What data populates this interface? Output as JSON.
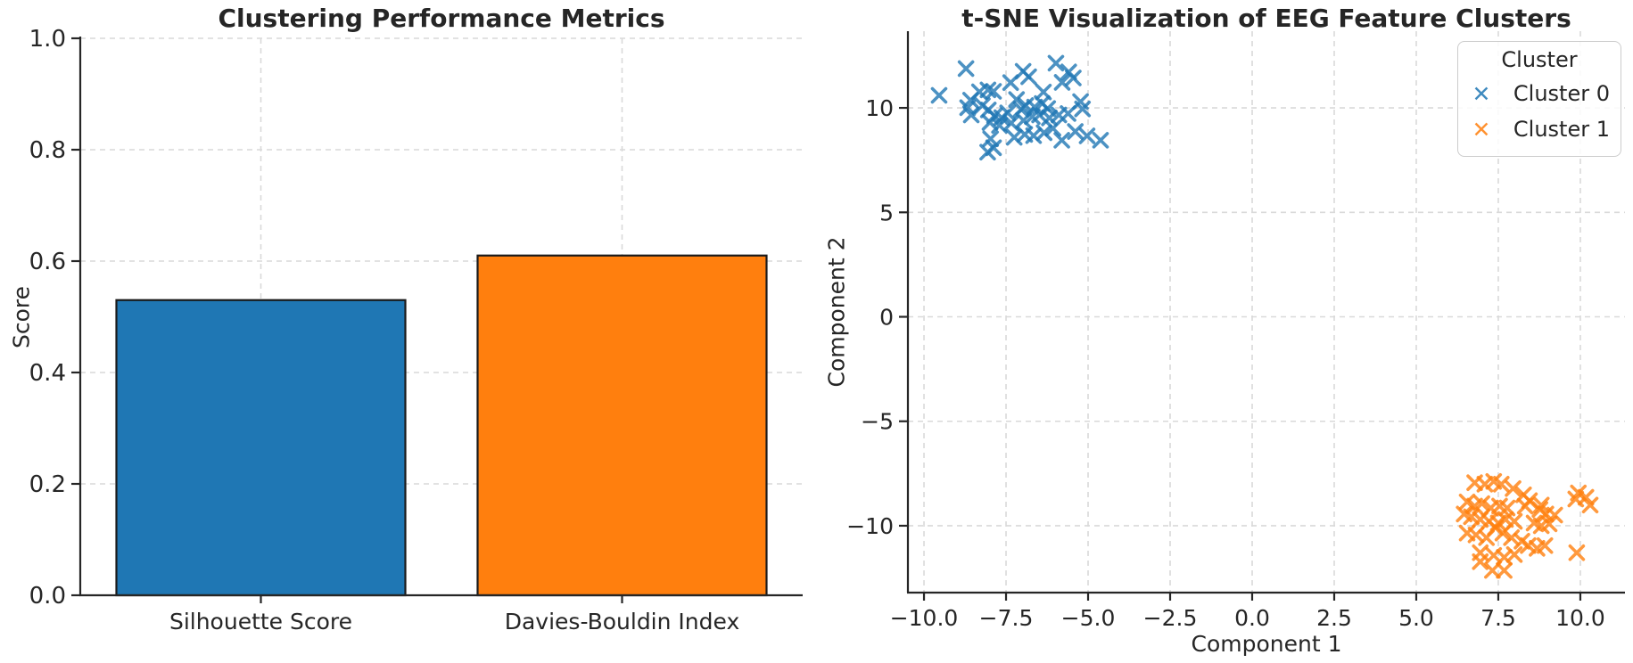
{
  "chart_data": [
    {
      "type": "bar",
      "title": "Clustering Performance Metrics",
      "xlabel": "",
      "ylabel": "Score",
      "categories": [
        "Silhouette Score",
        "Davies-Bouldin Index"
      ],
      "values": [
        0.53,
        0.61
      ],
      "bar_colors": [
        "#1f77b4",
        "#ff7f0e"
      ],
      "bar_edge_color": "#1a1a1a",
      "ylim": [
        0.0,
        1.0
      ],
      "yticks": [
        0.0,
        0.2,
        0.4,
        0.6,
        0.8,
        1.0
      ],
      "ytick_labels": [
        "0.0",
        "0.2",
        "0.4",
        "0.6",
        "0.8",
        "1.0"
      ],
      "grid": "both-dashed",
      "legend_position": "none"
    },
    {
      "type": "scatter",
      "title": "t-SNE Visualization of EEG Feature Clusters",
      "xlabel": "Component 1",
      "ylabel": "Component 2",
      "xlim": [
        -10.49,
        11.36
      ],
      "ylim": [
        -13.2,
        13.67
      ],
      "xticks": [
        -10.0,
        -7.5,
        -5.0,
        -2.5,
        0.0,
        2.5,
        5.0,
        7.5,
        10.0
      ],
      "xtick_labels": [
        "−10.0",
        "−7.5",
        "−5.0",
        "−2.5",
        "0.0",
        "2.5",
        "5.0",
        "7.5",
        "10.0"
      ],
      "yticks": [
        -10,
        -5,
        0,
        5,
        10
      ],
      "ytick_labels": [
        "−10",
        "−5",
        "0",
        "5",
        "10"
      ],
      "grid": "both-dashed",
      "marker": "x",
      "marker_opacity": 0.8,
      "legend": {
        "title": "Cluster",
        "position": "upper-right",
        "entries": [
          {
            "label": "Cluster 0",
            "color": "#1f77b4",
            "marker": "x"
          },
          {
            "label": "Cluster 1",
            "color": "#ff7f0e",
            "marker": "x"
          }
        ]
      },
      "series": [
        {
          "name": "Cluster 0",
          "color": "#1f77b4",
          "points": [
            [
              -9.54,
              10.6
            ],
            [
              -8.72,
              11.88
            ],
            [
              -8.31,
              10.77
            ],
            [
              -8.05,
              10.86
            ],
            [
              -7.88,
              10.79
            ],
            [
              -7.36,
              11.21
            ],
            [
              -6.98,
              11.75
            ],
            [
              -6.81,
              11.49
            ],
            [
              -5.98,
              12.14
            ],
            [
              -5.59,
              11.72
            ],
            [
              -5.45,
              11.43
            ],
            [
              -5.79,
              11.22
            ],
            [
              -6.36,
              10.76
            ],
            [
              -7.18,
              10.4
            ],
            [
              -6.4,
              10.21
            ],
            [
              -6.23,
              9.97
            ],
            [
              -6.63,
              10.04
            ],
            [
              -6.9,
              10.11
            ],
            [
              -7.04,
              9.93
            ],
            [
              -7.45,
              9.76
            ],
            [
              -7.63,
              9.53
            ],
            [
              -7.85,
              9.62
            ],
            [
              -8.04,
              9.9
            ],
            [
              -8.22,
              10.11
            ],
            [
              -8.58,
              10.37
            ],
            [
              -8.67,
              10.01
            ],
            [
              -8.56,
              9.66
            ],
            [
              -7.99,
              9.3
            ],
            [
              -7.7,
              9.16
            ],
            [
              -7.34,
              9.27
            ],
            [
              -6.97,
              9.4
            ],
            [
              -6.7,
              9.58
            ],
            [
              -6.48,
              9.66
            ],
            [
              -6.18,
              9.52
            ],
            [
              -5.89,
              9.66
            ],
            [
              -5.61,
              9.73
            ],
            [
              -5.23,
              10.3
            ],
            [
              -5.17,
              9.95
            ],
            [
              -6.07,
              9.02
            ],
            [
              -6.34,
              8.81
            ],
            [
              -6.66,
              8.67
            ],
            [
              -6.93,
              8.73
            ],
            [
              -7.25,
              8.59
            ],
            [
              -7.97,
              8.52
            ],
            [
              -7.88,
              8.09
            ],
            [
              -8.06,
              7.88
            ],
            [
              -5.8,
              8.45
            ],
            [
              -5.39,
              8.87
            ],
            [
              -5.03,
              8.66
            ],
            [
              -4.62,
              8.45
            ]
          ]
        },
        {
          "name": "Cluster 1",
          "color": "#ff7f0e",
          "points": [
            [
              6.78,
              -7.94
            ],
            [
              7.09,
              -8.01
            ],
            [
              7.36,
              -7.88
            ],
            [
              7.59,
              -8.01
            ],
            [
              7.95,
              -8.22
            ],
            [
              8.27,
              -8.52
            ],
            [
              8.45,
              -8.8
            ],
            [
              8.81,
              -9.01
            ],
            [
              9.94,
              -8.43
            ],
            [
              10.17,
              -8.64
            ],
            [
              6.55,
              -8.86
            ],
            [
              6.78,
              -9.06
            ],
            [
              7.0,
              -8.94
            ],
            [
              7.27,
              -9.15
            ],
            [
              7.54,
              -9.06
            ],
            [
              7.77,
              -9.15
            ],
            [
              8.32,
              -9.06
            ],
            [
              8.77,
              -9.22
            ],
            [
              8.95,
              -9.44
            ],
            [
              9.22,
              -9.49
            ],
            [
              6.46,
              -9.44
            ],
            [
              6.68,
              -9.57
            ],
            [
              6.95,
              -9.7
            ],
            [
              7.22,
              -9.79
            ],
            [
              7.5,
              -9.87
            ],
            [
              7.72,
              -9.7
            ],
            [
              7.99,
              -9.79
            ],
            [
              8.59,
              -9.87
            ],
            [
              8.81,
              -10.0
            ],
            [
              9.05,
              -9.91
            ],
            [
              6.55,
              -10.35
            ],
            [
              6.82,
              -10.44
            ],
            [
              7.14,
              -10.57
            ],
            [
              7.41,
              -10.09
            ],
            [
              7.64,
              -10.35
            ],
            [
              7.9,
              -10.57
            ],
            [
              8.22,
              -10.74
            ],
            [
              8.41,
              -10.95
            ],
            [
              8.68,
              -11.08
            ],
            [
              8.92,
              -10.95
            ],
            [
              6.95,
              -11.29
            ],
            [
              7.36,
              -11.42
            ],
            [
              7.68,
              -11.51
            ],
            [
              7.99,
              -11.38
            ],
            [
              6.95,
              -11.72
            ],
            [
              7.32,
              -12.14
            ],
            [
              7.68,
              -12.14
            ],
            [
              9.86,
              -8.72
            ],
            [
              10.3,
              -9.01
            ],
            [
              9.89,
              -11.29
            ]
          ]
        }
      ]
    }
  ],
  "style": {
    "grid_color": "#d9d9d9",
    "spine_color": "#262626",
    "text_color": "#262626",
    "background": "#ffffff"
  }
}
